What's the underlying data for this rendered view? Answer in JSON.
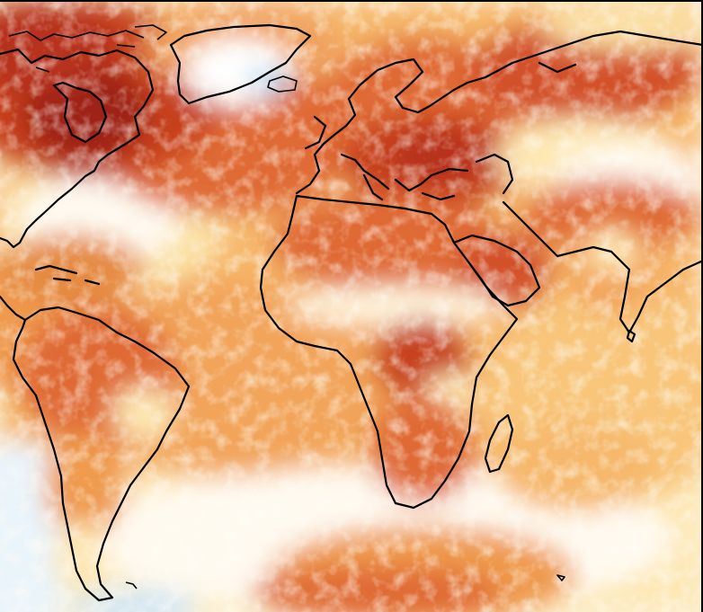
{
  "map": {
    "type": "global-anomaly-field",
    "projection": "equirectangular",
    "palette": {
      "cold_1": "#cfe6f6",
      "cold_2": "#9ecae9",
      "neutral": "#fffaf0",
      "warm_1": "#fde7b4",
      "warm_2": "#f8c57a",
      "warm_3": "#ef9a4e",
      "warm_4": "#e06a34",
      "warm_5": "#c7401f",
      "warm_6": "#9e2014",
      "frame": "#000000"
    },
    "regions": [
      {
        "name": "canada-hudson",
        "level": "warm_6"
      },
      {
        "name": "greenland-interior",
        "level": "cold_1"
      },
      {
        "name": "north-atlantic-gyre",
        "level": "neutral"
      },
      {
        "name": "eastern-europe",
        "level": "warm_5"
      },
      {
        "name": "siberia-plateau",
        "level": "neutral"
      },
      {
        "name": "sahara",
        "level": "warm_4"
      },
      {
        "name": "sahel-band",
        "level": "neutral"
      },
      {
        "name": "congo-basin",
        "level": "warm_5"
      },
      {
        "name": "amazon",
        "level": "warm_4"
      },
      {
        "name": "south-atlantic",
        "level": "warm_1"
      },
      {
        "name": "southern-ocean",
        "level": "warm_4"
      },
      {
        "name": "south-pacific-west",
        "level": "cold_1"
      }
    ],
    "coastlines": [
      "north-america",
      "greenland",
      "europe",
      "africa",
      "south-america",
      "arabia",
      "india",
      "madagascar",
      "asia"
    ]
  }
}
